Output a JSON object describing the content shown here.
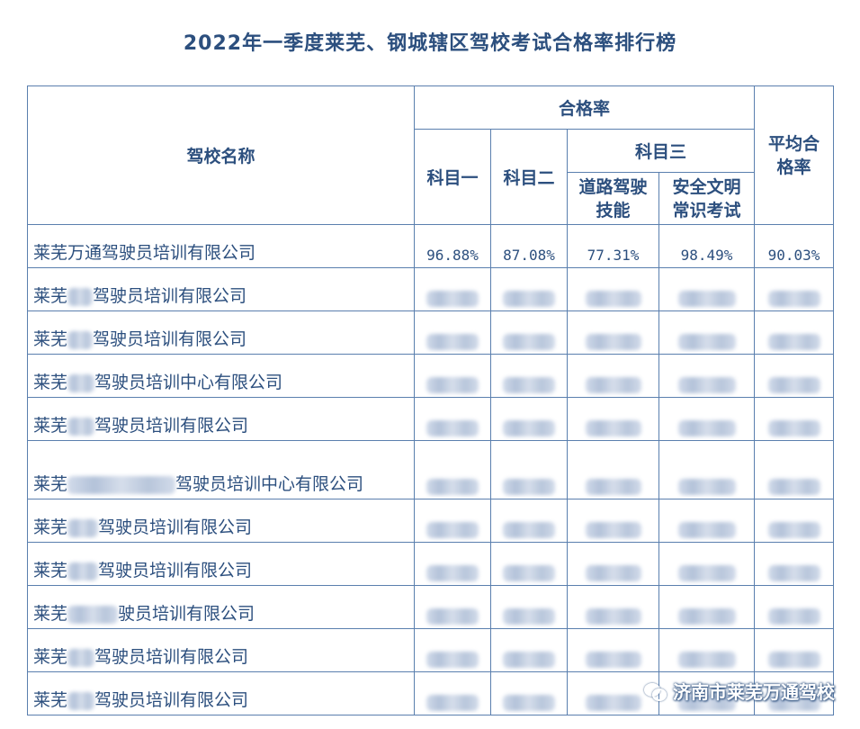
{
  "title": "2022年一季度莱芜、钢城辖区驾校考试合格率排行榜",
  "headers": {
    "school_name": "驾校名称",
    "pass_rate": "合格率",
    "subject1": "科目一",
    "subject2": "科目二",
    "subject3": "科目三",
    "road_driving": "道路驾驶技能",
    "safety_exam": "安全文明常识考试",
    "average": "平均合格率"
  },
  "rows": [
    {
      "prefix": "莱芜万通驾驶员培训有限公司",
      "suffix": "",
      "values": [
        "96.88%",
        "87.08%",
        "77.31%",
        "98.49%",
        "90.03%"
      ]
    },
    {
      "prefix": "莱芜",
      "suffix": "驾驶员培训有限公司"
    },
    {
      "prefix": "莱芜",
      "suffix": "驾驶员培训有限公司"
    },
    {
      "prefix": "莱芜",
      "suffix": "驾驶员培训中心有限公司"
    },
    {
      "prefix": "莱芜",
      "suffix": "驾驶员培训有限公司"
    },
    {
      "prefix": "莱芜",
      "suffix": "驾驶员培训中心有限公司"
    },
    {
      "prefix": "莱芜",
      "suffix": "驾驶员培训有限公司"
    },
    {
      "prefix": "莱芜",
      "suffix": "驾驶员培训有限公司"
    },
    {
      "prefix": "莱芜",
      "suffix": "驶员培训有限公司"
    },
    {
      "prefix": "莱芜",
      "suffix": "驾驶员培训有限公司"
    },
    {
      "prefix": "莱芜",
      "suffix": "驾驶员培训有限公司"
    }
  ],
  "watermark": "济南市莱芜万通驾校",
  "watermark_icon": "wechat-icon"
}
